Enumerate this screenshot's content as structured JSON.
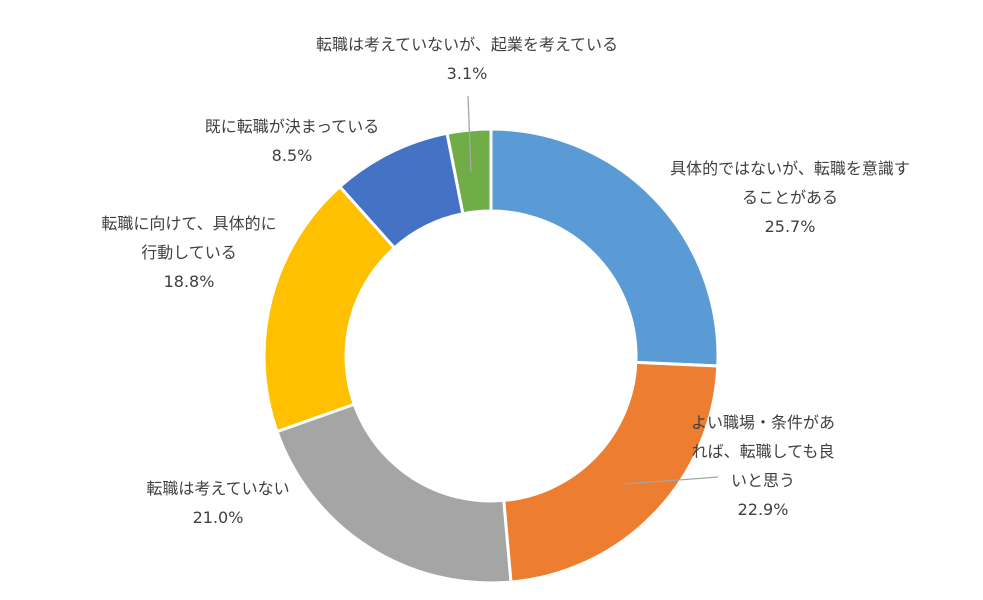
{
  "chart_data": {
    "type": "pie",
    "variant": "donut",
    "title": "",
    "start_angle_deg": 0,
    "direction": "clockwise",
    "slice_border_color": "#ffffff",
    "label_color": "#404040",
    "leader_line_color": "#a6a6a6",
    "slices": [
      {
        "label_lines": [
          "具体的ではないが、転職を意識す",
          "ることがある"
        ],
        "value": 25.7,
        "value_label": "25.7%",
        "color": "#5b9bd5"
      },
      {
        "label_lines": [
          "よい職場・条件があ",
          "れば、転職しても良",
          "いと思う"
        ],
        "value": 22.9,
        "value_label": "22.9%",
        "color": "#ed7d31"
      },
      {
        "label_lines": [
          "転職は考えていない"
        ],
        "value": 21.0,
        "value_label": "21.0%",
        "color": "#a5a5a5"
      },
      {
        "label_lines": [
          "転職に向けて、具体的に",
          "行動している"
        ],
        "value": 18.8,
        "value_label": "18.8%",
        "color": "#ffc000"
      },
      {
        "label_lines": [
          "既に転職が決まっている"
        ],
        "value": 8.5,
        "value_label": "8.5%",
        "color": "#4472c4"
      },
      {
        "label_lines": [
          "転職は考えていないが、起業を考えている"
        ],
        "value": 3.1,
        "value_label": "3.1%",
        "color": "#70ad47"
      }
    ]
  }
}
